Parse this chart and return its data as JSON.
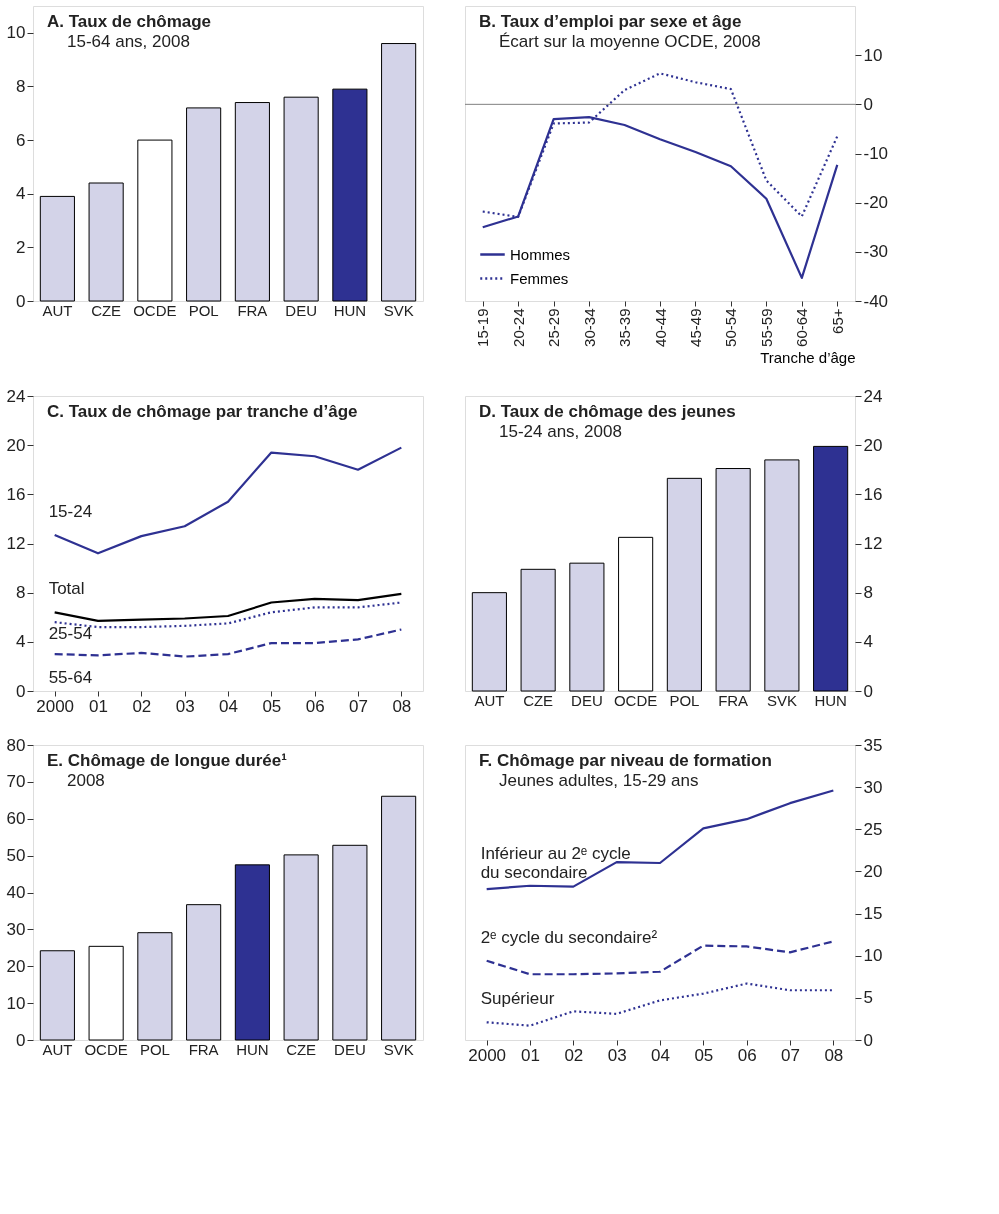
{
  "chart_data": [
    {
      "type": "bar",
      "title": "A. Taux de chômage",
      "subtitle": "15-64 ans, 2008",
      "categories": [
        "AUT",
        "CZE",
        "OCDE",
        "POL",
        "FRA",
        "DEU",
        "HUN",
        "SVK"
      ],
      "values": [
        3.9,
        4.4,
        6.0,
        7.2,
        7.4,
        7.6,
        7.9,
        9.6
      ],
      "colors": [
        "#d3d3e8",
        "#d3d3e8",
        "#ffffff",
        "#d3d3e8",
        "#d3d3e8",
        "#d3d3e8",
        "#2e3192",
        "#d3d3e8"
      ],
      "ylim": [
        0,
        11
      ],
      "yticks": [
        0,
        2,
        4,
        6,
        8,
        10
      ],
      "grid": false,
      "legend": false
    },
    {
      "type": "line",
      "title": "B. Taux d’emploi par sexe et âge",
      "subtitle": "Écart sur la moyenne OCDE, 2008",
      "xlabel": "Tranche d’âge",
      "categories": [
        "15-19",
        "20-24",
        "25-29",
        "30-34",
        "35-39",
        "40-44",
        "45-49",
        "50-54",
        "55-59",
        "60-64",
        "65+"
      ],
      "series": [
        {
          "name": "Hommes",
          "color": "#2e3192",
          "line_style": "solid",
          "values": [
            -25.0,
            -22.8,
            -3.0,
            -2.6,
            -4.2,
            -7.1,
            -9.7,
            -12.6,
            -19.2,
            -35.3,
            -12.3
          ]
        },
        {
          "name": "Femmes",
          "color": "#2e3192",
          "line_style": "dotted",
          "values": [
            -21.8,
            -22.9,
            -3.9,
            -3.7,
            2.9,
            6.3,
            4.5,
            3.1,
            -15.5,
            -22.8,
            -6.5
          ]
        }
      ],
      "ylim": [
        -40,
        20
      ],
      "yticks": [
        -40,
        -30,
        -20,
        -10,
        0,
        10
      ],
      "ref_lines": [
        {
          "axis": "y",
          "value": 0,
          "color": "#808080"
        }
      ],
      "grid": false,
      "legend": "bottom left"
    },
    {
      "type": "line",
      "title": "C. Taux de chômage par tranche d’âge",
      "x": [
        2000,
        2001,
        2002,
        2003,
        2004,
        2005,
        2006,
        2007,
        2008
      ],
      "series": [
        {
          "name": "15-24",
          "color": "#2e3192",
          "line_style": "solid",
          "values": [
            12.7,
            11.2,
            12.6,
            13.4,
            15.4,
            19.4,
            19.1,
            18.0,
            19.8
          ]
        },
        {
          "name": "Total",
          "color": "#000000",
          "line_style": "solid",
          "values": [
            6.4,
            5.7,
            5.8,
            5.9,
            6.1,
            7.2,
            7.5,
            7.4,
            7.9
          ]
        },
        {
          "name": "25-54",
          "color": "#2e3192",
          "line_style": "dotted",
          "values": [
            5.6,
            5.2,
            5.2,
            5.3,
            5.5,
            6.4,
            6.8,
            6.8,
            7.2
          ]
        },
        {
          "name": "55-64",
          "color": "#2e3192",
          "line_style": "dashed",
          "values": [
            3.0,
            2.9,
            3.1,
            2.8,
            3.0,
            3.9,
            3.9,
            4.2,
            5.0
          ]
        }
      ],
      "xlim": [
        1999.5,
        2008.5
      ],
      "xticks": [
        2000,
        {
          "value": 2001,
          "label": "01"
        },
        {
          "value": 2002,
          "label": "02"
        },
        {
          "value": 2003,
          "label": "03"
        },
        {
          "value": 2004,
          "label": "04"
        },
        {
          "value": 2005,
          "label": "05"
        },
        {
          "value": 2006,
          "label": "06"
        },
        {
          "value": 2007,
          "label": "07"
        },
        {
          "value": 2008,
          "label": "08"
        }
      ],
      "ylim": [
        0,
        24
      ],
      "yticks": [
        0,
        4,
        8,
        12,
        16,
        20,
        24
      ],
      "grid": false,
      "legend": false
    },
    {
      "type": "bar",
      "title": "D. Taux de chômage des jeunes",
      "subtitle": "15-24 ans, 2008",
      "categories": [
        "AUT",
        "CZE",
        "DEU",
        "OCDE",
        "POL",
        "FRA",
        "SVK",
        "HUN"
      ],
      "values": [
        8.0,
        9.9,
        10.4,
        12.5,
        17.3,
        18.1,
        18.8,
        19.9
      ],
      "colors": [
        "#d3d3e8",
        "#d3d3e8",
        "#d3d3e8",
        "#ffffff",
        "#d3d3e8",
        "#d3d3e8",
        "#d3d3e8",
        "#2e3192"
      ],
      "ylim": [
        0,
        24
      ],
      "yticks": [
        0,
        4,
        8,
        12,
        16,
        20,
        24
      ],
      "grid": false,
      "legend": false
    },
    {
      "type": "bar",
      "title": "E. Chômage de longue durée¹",
      "subtitle": "2008",
      "categories": [
        "AUT",
        "OCDE",
        "POL",
        "FRA",
        "HUN",
        "CZE",
        "DEU",
        "SVK"
      ],
      "values": [
        24.2,
        25.4,
        29.1,
        36.7,
        47.5,
        50.2,
        52.8,
        66.1
      ],
      "colors": [
        "#d3d3e8",
        "#ffffff",
        "#d3d3e8",
        "#d3d3e8",
        "#2e3192",
        "#d3d3e8",
        "#d3d3e8",
        "#d3d3e8"
      ],
      "ylim": [
        0,
        80
      ],
      "yticks": [
        0,
        10,
        20,
        30,
        40,
        50,
        60,
        70,
        80
      ],
      "grid": false,
      "legend": false
    },
    {
      "type": "line",
      "title": "F. Chômage par niveau de formation",
      "subtitle": "Jeunes adultes, 15-29 ans",
      "x": [
        2000,
        2001,
        2002,
        2003,
        2004,
        2005,
        2006,
        2007,
        2008
      ],
      "series": [
        {
          "name": "Inférieur au 2ᵉ cycle\ndu secondaire",
          "color": "#2e3192",
          "line_style": "solid",
          "values": [
            17.9,
            18.3,
            18.2,
            21.1,
            21.0,
            25.1,
            26.2,
            28.1,
            29.6
          ]
        },
        {
          "name": "2ᵉ cycle du secondaire²",
          "color": "#2e3192",
          "line_style": "dashed",
          "values": [
            9.4,
            7.8,
            7.8,
            7.9,
            8.1,
            11.2,
            11.1,
            10.4,
            11.7
          ]
        },
        {
          "name": "Supérieur",
          "color": "#2e3192",
          "line_style": "dotted",
          "values": [
            2.1,
            1.7,
            3.4,
            3.1,
            4.7,
            5.5,
            6.7,
            5.9,
            5.9
          ]
        }
      ],
      "xlim": [
        1999.5,
        2008.5
      ],
      "xticks": [
        2000,
        {
          "value": 2001,
          "label": "01"
        },
        {
          "value": 2002,
          "label": "02"
        },
        {
          "value": 2003,
          "label": "03"
        },
        {
          "value": 2004,
          "label": "04"
        },
        {
          "value": 2005,
          "label": "05"
        },
        {
          "value": 2006,
          "label": "06"
        },
        {
          "value": 2007,
          "label": "07"
        },
        {
          "value": 2008,
          "label": "08"
        }
      ],
      "ylim": [
        0,
        35
      ],
      "yticks": [
        0,
        5,
        10,
        15,
        20,
        25,
        30,
        35
      ],
      "grid": false,
      "legend": false
    }
  ]
}
